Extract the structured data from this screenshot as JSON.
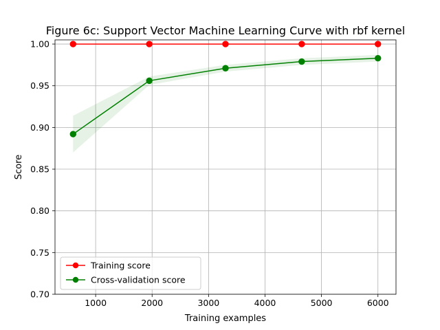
{
  "chart_data": {
    "type": "line",
    "title": "Figure 6c: Support Vector Machine Learning Curve with rbf kernel",
    "xlabel": "Training examples",
    "ylabel": "Score",
    "xlim": [
      280,
      6320
    ],
    "ylim": [
      0.7,
      1.005
    ],
    "xticks": [
      1000,
      2000,
      3000,
      4000,
      5000,
      6000
    ],
    "xtick_labels": [
      "1000",
      "2000",
      "3000",
      "4000",
      "5000",
      "6000"
    ],
    "yticks": [
      0.7,
      0.75,
      0.8,
      0.85,
      0.9,
      0.95,
      1.0
    ],
    "ytick_labels": [
      "0.70",
      "0.75",
      "0.80",
      "0.85",
      "0.90",
      "0.95",
      "1.00"
    ],
    "grid": true,
    "legend_position": "lower-left",
    "series": [
      {
        "name": "Training score",
        "color": "#ff0000",
        "marker": "circle",
        "x": [
          600,
          1950,
          3300,
          4650,
          6000
        ],
        "y": [
          1.0,
          1.0,
          1.0,
          1.0,
          1.0
        ],
        "band_lower": [
          1.0,
          1.0,
          1.0,
          1.0,
          1.0
        ],
        "band_upper": [
          1.0,
          1.0,
          1.0,
          1.0,
          1.0
        ]
      },
      {
        "name": "Cross-validation score",
        "color": "#008000",
        "band_color": "#008000",
        "marker": "circle",
        "x": [
          600,
          1950,
          3300,
          4650,
          6000
        ],
        "y": [
          0.892,
          0.956,
          0.971,
          0.979,
          0.983
        ],
        "band_lower": [
          0.87,
          0.951,
          0.967,
          0.975,
          0.979
        ],
        "band_upper": [
          0.914,
          0.961,
          0.975,
          0.983,
          0.987
        ]
      }
    ]
  }
}
